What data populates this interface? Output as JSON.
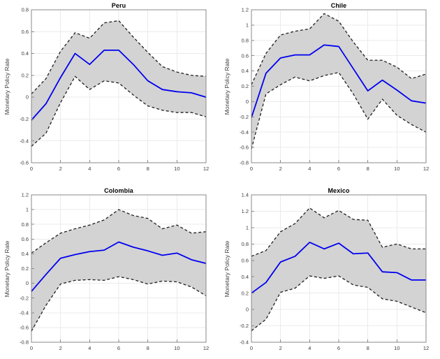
{
  "figure": {
    "background": "#ffffff",
    "colors": {
      "response_line": "#0000F0",
      "band_fill": "#D3D3D3",
      "band_edge": "#1F1F1F",
      "grid": "#EBEBEB",
      "axis": "#8A8A8A",
      "tick_label": "#3D3D3D",
      "title": "#000000"
    }
  },
  "chart_data": [
    {
      "type": "line",
      "title": "Peru",
      "ylabel": "Monetary Policy Rate",
      "xlabel": "",
      "x": [
        0,
        1,
        2,
        3,
        4,
        5,
        6,
        7,
        8,
        9,
        10,
        11,
        12
      ],
      "xlim": [
        0,
        12
      ],
      "xticks": [
        0,
        2,
        4,
        6,
        8,
        10,
        12
      ],
      "ylim": [
        -0.6,
        0.8
      ],
      "yticks": [
        -0.6,
        -0.4,
        -0.2,
        0,
        0.2,
        0.4,
        0.6,
        0.8
      ],
      "grid": true,
      "legend": null,
      "series": [
        {
          "name": "response",
          "role": "median",
          "values": [
            -0.21,
            -0.06,
            0.18,
            0.4,
            0.3,
            0.43,
            0.43,
            0.3,
            0.15,
            0.07,
            0.05,
            0.04,
            0.0
          ]
        },
        {
          "name": "upper_band",
          "role": "band_upper",
          "values": [
            0.03,
            0.17,
            0.42,
            0.59,
            0.54,
            0.68,
            0.7,
            0.55,
            0.41,
            0.28,
            0.23,
            0.2,
            0.19
          ]
        },
        {
          "name": "lower_band",
          "role": "band_lower",
          "values": [
            -0.45,
            -0.33,
            -0.05,
            0.19,
            0.07,
            0.15,
            0.13,
            0.02,
            -0.08,
            -0.12,
            -0.14,
            -0.14,
            -0.18
          ]
        }
      ]
    },
    {
      "type": "line",
      "title": "Chile",
      "ylabel": "Monetary Policy Rate",
      "xlabel": "",
      "x": [
        0,
        1,
        2,
        3,
        4,
        5,
        6,
        7,
        8,
        9,
        10,
        11,
        12
      ],
      "xlim": [
        0,
        12
      ],
      "xticks": [
        0,
        2,
        4,
        6,
        8,
        10,
        12
      ],
      "ylim": [
        -0.8,
        1.2
      ],
      "yticks": [
        -0.8,
        -0.6,
        -0.4,
        -0.2,
        0,
        0.2,
        0.4,
        0.6,
        0.8,
        1,
        1.2
      ],
      "grid": true,
      "legend": null,
      "series": [
        {
          "name": "response",
          "role": "median",
          "values": [
            -0.21,
            0.37,
            0.57,
            0.61,
            0.61,
            0.74,
            0.72,
            0.43,
            0.14,
            0.28,
            0.15,
            0.01,
            -0.02
          ]
        },
        {
          "name": "upper_band",
          "role": "band_upper",
          "values": [
            0.22,
            0.63,
            0.87,
            0.92,
            0.95,
            1.15,
            1.05,
            0.78,
            0.54,
            0.54,
            0.45,
            0.3,
            0.36
          ]
        },
        {
          "name": "lower_band",
          "role": "band_lower",
          "values": [
            -0.62,
            0.1,
            0.22,
            0.32,
            0.27,
            0.34,
            0.38,
            0.1,
            -0.23,
            0.03,
            -0.18,
            -0.3,
            -0.4
          ]
        }
      ]
    },
    {
      "type": "line",
      "title": "Colombia",
      "ylabel": "Monetary Policy Rate",
      "xlabel": "",
      "x": [
        0,
        1,
        2,
        3,
        4,
        5,
        6,
        7,
        8,
        9,
        10,
        11,
        12
      ],
      "xlim": [
        0,
        12
      ],
      "xticks": [
        0,
        2,
        4,
        6,
        8,
        10,
        12
      ],
      "ylim": [
        -0.8,
        1.2
      ],
      "yticks": [
        -0.8,
        -0.6,
        -0.4,
        -0.2,
        0,
        0.2,
        0.4,
        0.6,
        0.8,
        1,
        1.2
      ],
      "grid": true,
      "legend": null,
      "series": [
        {
          "name": "response",
          "role": "median",
          "values": [
            -0.11,
            0.12,
            0.34,
            0.39,
            0.43,
            0.45,
            0.56,
            0.49,
            0.44,
            0.38,
            0.41,
            0.32,
            0.27
          ]
        },
        {
          "name": "upper_band",
          "role": "band_upper",
          "values": [
            0.41,
            0.55,
            0.68,
            0.74,
            0.79,
            0.86,
            1.0,
            0.92,
            0.88,
            0.74,
            0.79,
            0.68,
            0.7
          ]
        },
        {
          "name": "lower_band",
          "role": "band_lower",
          "values": [
            -0.65,
            -0.3,
            -0.01,
            0.04,
            0.05,
            0.04,
            0.09,
            0.05,
            -0.01,
            0.03,
            0.02,
            -0.05,
            -0.17
          ]
        }
      ]
    },
    {
      "type": "line",
      "title": "Mexico",
      "ylabel": "Monetary Policy Rate",
      "xlabel": "",
      "x": [
        0,
        1,
        2,
        3,
        4,
        5,
        6,
        7,
        8,
        9,
        10,
        11,
        12
      ],
      "xlim": [
        0,
        12
      ],
      "xticks": [
        0,
        2,
        4,
        6,
        8,
        10,
        12
      ],
      "ylim": [
        -0.4,
        1.4
      ],
      "yticks": [
        -0.4,
        -0.2,
        0,
        0.2,
        0.4,
        0.6,
        0.8,
        1,
        1.2,
        1.4
      ],
      "grid": true,
      "legend": null,
      "series": [
        {
          "name": "response",
          "role": "median",
          "values": [
            0.2,
            0.33,
            0.58,
            0.65,
            0.82,
            0.74,
            0.81,
            0.68,
            0.69,
            0.46,
            0.45,
            0.36,
            0.36
          ]
        },
        {
          "name": "upper_band",
          "role": "band_upper",
          "values": [
            0.65,
            0.72,
            0.95,
            1.05,
            1.24,
            1.12,
            1.21,
            1.1,
            1.09,
            0.76,
            0.8,
            0.74,
            0.74
          ]
        },
        {
          "name": "lower_band",
          "role": "band_lower",
          "values": [
            -0.26,
            -0.12,
            0.21,
            0.26,
            0.41,
            0.38,
            0.41,
            0.3,
            0.27,
            0.13,
            0.1,
            0.03,
            -0.04
          ]
        }
      ]
    }
  ]
}
